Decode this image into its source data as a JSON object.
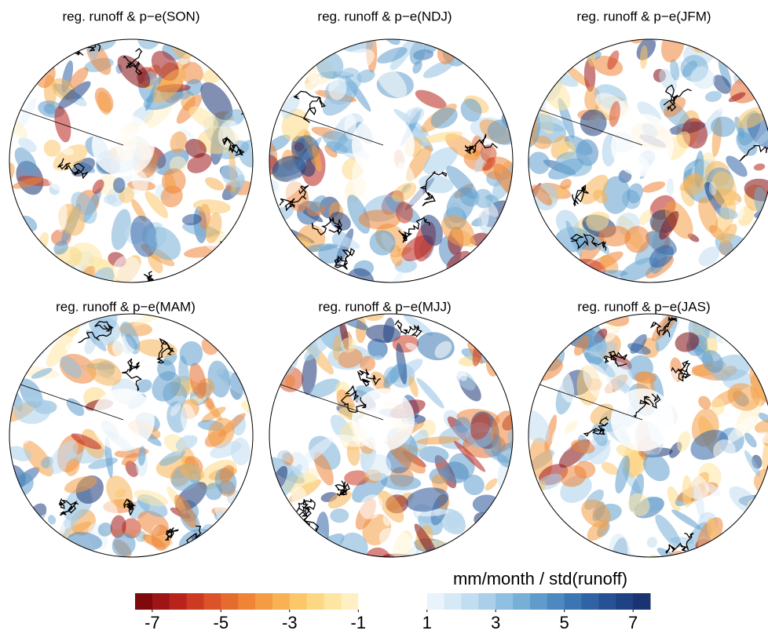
{
  "panels": [
    {
      "title": "reg. runoff & p−e(SON)"
    },
    {
      "title": "reg. runoff & p−e(NDJ)"
    },
    {
      "title": "reg. runoff & p−e(JFM)"
    },
    {
      "title": "reg. runoff & p−e(MAM)"
    },
    {
      "title": "reg. runoff & p−e(MJJ)"
    },
    {
      "title": "reg. runoff & p−e(JAS)"
    }
  ],
  "colorbar": {
    "label": "mm/month / std(runoff)",
    "xlim": [
      -7.5,
      7.5
    ],
    "ticks": [
      -7,
      -5,
      -3,
      -1,
      1,
      3,
      5,
      7
    ],
    "colors": [
      "#7f0a0c",
      "#9e1517",
      "#b8231c",
      "#cc3a22",
      "#db5328",
      "#e66b2f",
      "#ef8437",
      "#f49c44",
      "#f8b254",
      "#fbc769",
      "#fdd884",
      "#fee5a2",
      "#fff0c4",
      "#ffffff",
      "#ffffff",
      "#ffffff",
      "#ffffff",
      "#e9f3fb",
      "#d6e9f6",
      "#c1ddf0",
      "#a9cfe9",
      "#8fc0e1",
      "#77afd7",
      "#5f9ccc",
      "#4b89c0",
      "#3b76b3",
      "#2f63a5",
      "#265295",
      "#1f4284",
      "#1a3472"
    ]
  }
}
